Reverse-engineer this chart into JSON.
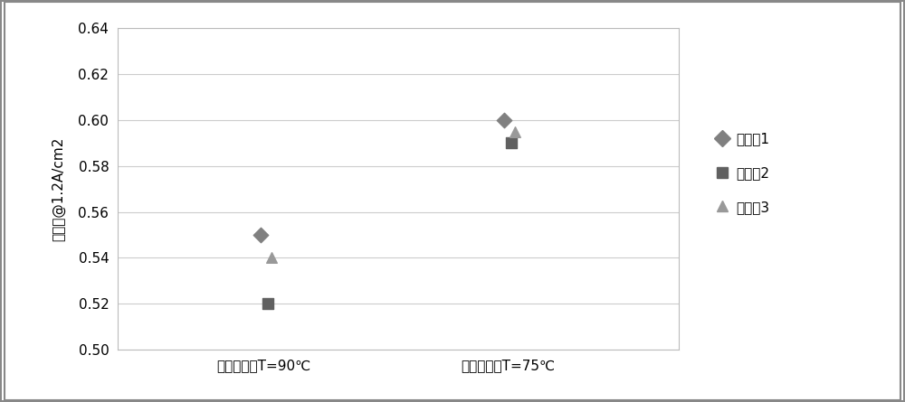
{
  "categories": [
    "冷却剂出口T=90℃",
    "冷却剂出口T=75℃"
  ],
  "series": [
    {
      "name": "实施例1",
      "values": [
        0.55,
        0.6
      ],
      "marker": "D",
      "color": "#808080"
    },
    {
      "name": "实施例2",
      "values": [
        0.52,
        0.59
      ],
      "marker": "s",
      "color": "#606060"
    },
    {
      "name": "实施例3",
      "values": [
        0.54,
        0.595
      ],
      "marker": "^",
      "color": "#999999"
    }
  ],
  "ylabel": "电压値@1.2A/cm2",
  "ylim": [
    0.5,
    0.64
  ],
  "yticks": [
    0.5,
    0.52,
    0.54,
    0.56,
    0.58,
    0.6,
    0.62,
    0.64
  ],
  "background_color": "#ffffff",
  "grid_color": "#cccccc",
  "tick_fontsize": 11,
  "legend_fontsize": 11,
  "ylabel_fontsize": 11,
  "outer_border_color": "#aaaaaa"
}
